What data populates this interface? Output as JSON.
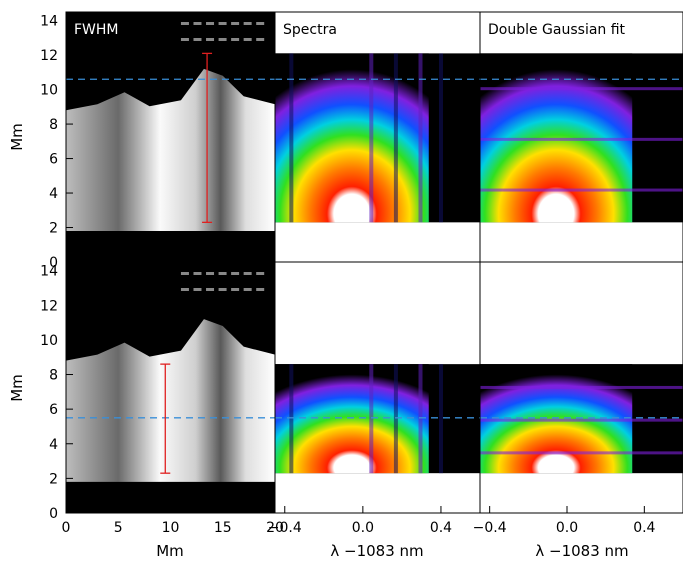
{
  "figure": {
    "ylabel_top": "Mm",
    "ylabel_bottom": "Mm",
    "xlabel_left": "Mm",
    "xlabel_mid": "λ −1083 nm",
    "xlabel_right": "λ −1083 nm"
  },
  "chart_data": [
    {
      "type": "heatmap",
      "panel": "top-left",
      "title": "FWHM",
      "xlim": [
        0,
        20
      ],
      "ylim": [
        0,
        14.5
      ],
      "x_ticks": [],
      "y_ticks": [
        0,
        2,
        4,
        6,
        8,
        10,
        12,
        14
      ],
      "colormap": "grayscale",
      "cut_height_mm": 10.6,
      "slit": {
        "x_mm": 13.5,
        "y_range_mm": [
          2.3,
          12.1
        ]
      },
      "cut_color": "#3a8fd8",
      "slit_color": "#e02020"
    },
    {
      "type": "heatmap",
      "panel": "top-middle",
      "title": "Spectra",
      "xlim": [
        -0.45,
        0.6
      ],
      "ylim": [
        0,
        14.5
      ],
      "x_ticks": [],
      "y_ticks": [],
      "data_y_range_mm": [
        2.3,
        12.1
      ],
      "cut_height_mm": 10.6,
      "colormap": "rainbow"
    },
    {
      "type": "heatmap",
      "panel": "top-right",
      "title": "Double Gaussian fit",
      "xlim": [
        -0.45,
        0.6
      ],
      "ylim": [
        0,
        14.5
      ],
      "x_ticks": [],
      "y_ticks": [],
      "data_y_range_mm": [
        2.3,
        12.1
      ],
      "cut_height_mm": 10.6,
      "colormap": "rainbow"
    },
    {
      "type": "heatmap",
      "panel": "bottom-left",
      "xlim": [
        0,
        20
      ],
      "ylim": [
        0,
        14.5
      ],
      "x_ticks": [
        0,
        5,
        10,
        15,
        20
      ],
      "y_ticks": [
        0,
        2,
        4,
        6,
        8,
        10,
        12,
        14
      ],
      "colormap": "grayscale",
      "cut_height_mm": 5.5,
      "slit": {
        "x_mm": 9.5,
        "y_range_mm": [
          2.3,
          8.6
        ]
      },
      "cut_color": "#3a8fd8",
      "slit_color": "#e02020"
    },
    {
      "type": "heatmap",
      "panel": "bottom-middle",
      "xlim": [
        -0.45,
        0.6
      ],
      "ylim": [
        0,
        14.5
      ],
      "x_ticks": [
        -0.4,
        0.0,
        0.4
      ],
      "x_tick_labels": [
        "−0.4",
        "0.0",
        "0.4"
      ],
      "y_ticks": [],
      "data_y_range_mm": [
        2.3,
        8.6
      ],
      "cut_height_mm": 5.5,
      "colormap": "rainbow"
    },
    {
      "type": "heatmap",
      "panel": "bottom-right",
      "xlim": [
        -0.45,
        0.6
      ],
      "ylim": [
        0,
        14.5
      ],
      "x_ticks": [
        -0.4,
        0.0,
        0.4
      ],
      "x_tick_labels": [
        "−0.4",
        "0.0",
        "0.4"
      ],
      "y_ticks": [],
      "data_y_range_mm": [
        2.3,
        8.6
      ],
      "cut_height_mm": 5.5,
      "colormap": "rainbow"
    }
  ]
}
